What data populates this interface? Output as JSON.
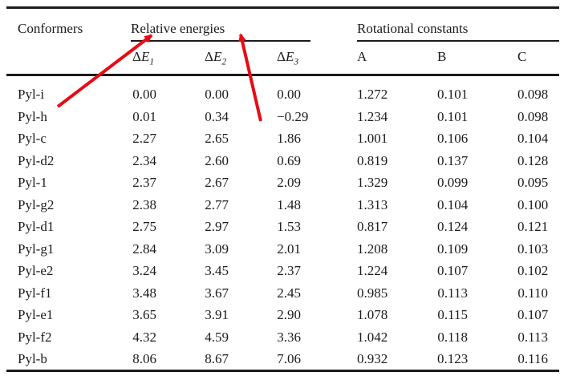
{
  "table": {
    "conformers_header": "Conformers",
    "relative_energies": {
      "label": "Relative energies",
      "columns": [
        {
          "delta": "Δ",
          "symbol": "E",
          "sub": "1"
        },
        {
          "delta": "Δ",
          "symbol": "E",
          "sub": "2"
        },
        {
          "delta": "Δ",
          "symbol": "E",
          "sub": "3"
        }
      ]
    },
    "rotational_constants": {
      "label": "Rotational constants",
      "columns": [
        "A",
        "B",
        "C"
      ]
    },
    "rows": [
      {
        "conformer": "Pyl-i",
        "values": [
          "0.00",
          "0.00",
          "0.00",
          "1.272",
          "0.101",
          "0.098"
        ]
      },
      {
        "conformer": "Pyl-h",
        "values": [
          "0.01",
          "0.34",
          "−0.29",
          "1.234",
          "0.101",
          "0.098"
        ]
      },
      {
        "conformer": "Pyl-c",
        "values": [
          "2.27",
          "2.65",
          "1.86",
          "1.001",
          "0.106",
          "0.104"
        ]
      },
      {
        "conformer": "Pyl-d2",
        "values": [
          "2.34",
          "2.60",
          "0.69",
          "0.819",
          "0.137",
          "0.128"
        ]
      },
      {
        "conformer": "Pyl-1",
        "values": [
          "2.37",
          "2.67",
          "2.09",
          "1.329",
          "0.099",
          "0.095"
        ]
      },
      {
        "conformer": "Pyl-g2",
        "values": [
          "2.38",
          "2.77",
          "1.48",
          "1.313",
          "0.104",
          "0.100"
        ]
      },
      {
        "conformer": "Pyl-d1",
        "values": [
          "2.75",
          "2.97",
          "1.53",
          "0.817",
          "0.124",
          "0.121"
        ]
      },
      {
        "conformer": "Pyl-g1",
        "values": [
          "2.84",
          "3.09",
          "2.01",
          "1.208",
          "0.109",
          "0.103"
        ]
      },
      {
        "conformer": "Pyl-e2",
        "values": [
          "3.24",
          "3.45",
          "2.37",
          "1.224",
          "0.107",
          "0.102"
        ]
      },
      {
        "conformer": "Pyl-f1",
        "values": [
          "3.48",
          "3.67",
          "2.45",
          "0.985",
          "0.113",
          "0.110"
        ]
      },
      {
        "conformer": "Pyl-e1",
        "values": [
          "3.65",
          "3.91",
          "2.90",
          "1.078",
          "0.115",
          "0.107"
        ]
      },
      {
        "conformer": "Pyl-f2",
        "values": [
          "4.32",
          "4.59",
          "3.36",
          "1.042",
          "0.118",
          "0.113"
        ]
      },
      {
        "conformer": "Pyl-b",
        "values": [
          "8.06",
          "8.67",
          "7.06",
          "0.932",
          "0.123",
          "0.116"
        ]
      }
    ]
  },
  "annotations": {
    "arrow_color": "#e60c15",
    "arrows_point_to": "Relative energies"
  }
}
